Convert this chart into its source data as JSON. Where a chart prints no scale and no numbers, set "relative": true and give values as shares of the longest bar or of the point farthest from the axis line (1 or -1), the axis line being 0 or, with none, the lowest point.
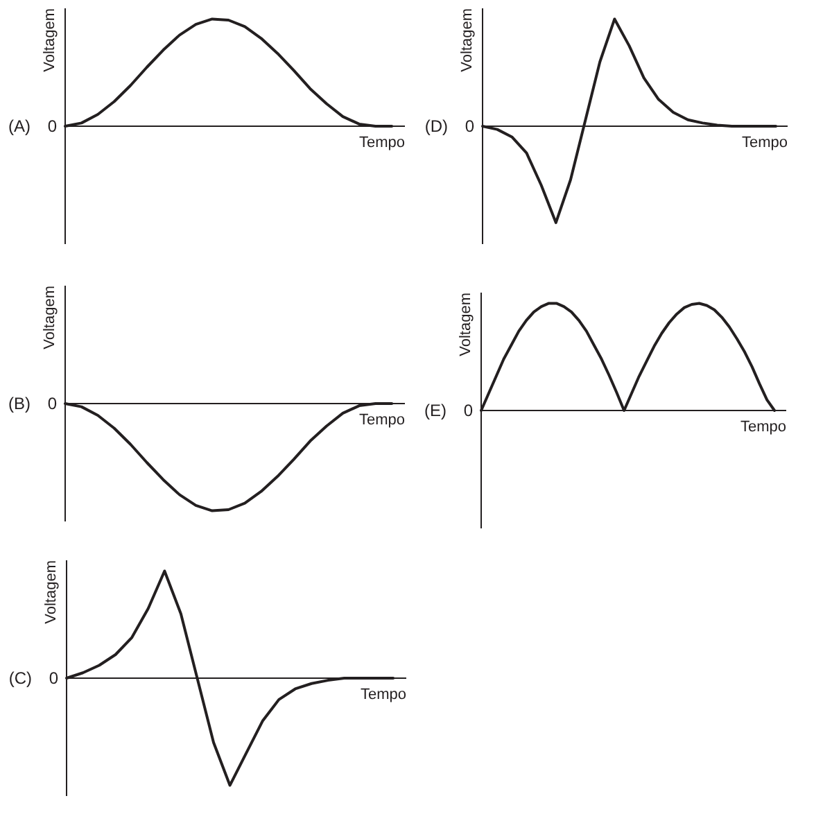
{
  "chart_data": [
    {
      "type": "line",
      "title": "(A)",
      "xlabel": "Tempo",
      "ylabel": "Voltagem",
      "relative": true,
      "color": "#231f20",
      "annotations": [
        "0"
      ],
      "categories": [
        null,
        null,
        null,
        null,
        null,
        null,
        null,
        null,
        null,
        null,
        null,
        null,
        null,
        null,
        null,
        null,
        null,
        null,
        null,
        null,
        null
      ],
      "values": [
        0,
        0.03,
        0.11,
        0.23,
        0.38,
        0.55,
        0.71,
        0.85,
        0.95,
        1,
        0.99,
        0.93,
        0.82,
        0.68,
        0.52,
        0.35,
        0.21,
        0.09,
        0.02,
        0,
        0
      ]
    },
    {
      "type": "line",
      "title": "(B)",
      "xlabel": "Tempo",
      "ylabel": "Voltagem",
      "relative": true,
      "color": "#231f20",
      "annotations": [
        "0"
      ],
      "categories": [
        null,
        null,
        null,
        null,
        null,
        null,
        null,
        null,
        null,
        null,
        null,
        null,
        null,
        null,
        null,
        null,
        null,
        null,
        null,
        null,
        null
      ],
      "values": [
        0,
        -0.03,
        -0.11,
        -0.23,
        -0.38,
        -0.55,
        -0.71,
        -0.85,
        -0.95,
        -1,
        -0.99,
        -0.93,
        -0.82,
        -0.68,
        -0.52,
        -0.35,
        -0.21,
        -0.09,
        -0.02,
        0,
        0
      ]
    },
    {
      "type": "line",
      "xlabel": "Tempo",
      "ylabel": "Voltagem",
      "relative": true,
      "color": "#231f20",
      "annotations": [
        "0"
      ],
      "title": "(C)",
      "categories": [
        null,
        null,
        null,
        null,
        null,
        null,
        null,
        null,
        null,
        null,
        null,
        null,
        null,
        null,
        null,
        null,
        null,
        null,
        null,
        null,
        null
      ],
      "values": [
        0,
        0.05,
        0.12,
        0.22,
        0.38,
        0.65,
        1,
        0.6,
        0,
        -0.6,
        -1,
        -0.7,
        -0.4,
        -0.2,
        -0.1,
        -0.05,
        -0.02,
        0,
        0,
        0,
        0
      ]
    },
    {
      "type": "line",
      "title": "(D)",
      "xlabel": "Tempo",
      "ylabel": "Voltagem",
      "relative": true,
      "color": "#231f20",
      "annotations": [
        "0"
      ],
      "categories": [
        null,
        null,
        null,
        null,
        null,
        null,
        null,
        null,
        null,
        null,
        null,
        null,
        null,
        null,
        null,
        null,
        null,
        null,
        null,
        null,
        null
      ],
      "values": [
        0,
        -0.03,
        -0.1,
        -0.25,
        -0.55,
        -0.9,
        -0.5,
        0.05,
        0.6,
        1,
        0.75,
        0.45,
        0.25,
        0.13,
        0.06,
        0.03,
        0.01,
        0,
        0,
        0,
        0
      ]
    },
    {
      "type": "line",
      "title": "(E)",
      "xlabel": "Tempo",
      "ylabel": "Voltagem",
      "relative": true,
      "color": "#231f20",
      "annotations": [
        "0"
      ],
      "categories": [
        null,
        null,
        null,
        null,
        null,
        null,
        null,
        null,
        null,
        null,
        null,
        null,
        null,
        null,
        null,
        null,
        null,
        null,
        null,
        null,
        null,
        null,
        null,
        null,
        null,
        null,
        null,
        null,
        null,
        null,
        null,
        null,
        null,
        null,
        null,
        null,
        null,
        null,
        null,
        null
      ],
      "values": [
        0,
        0.16,
        0.32,
        0.48,
        0.61,
        0.74,
        0.84,
        0.92,
        0.97,
        1,
        1,
        0.97,
        0.92,
        0.84,
        0.74,
        0.61,
        0.48,
        0.33,
        0.17,
        0,
        0.16,
        0.32,
        0.46,
        0.6,
        0.72,
        0.82,
        0.9,
        0.96,
        0.99,
        1,
        0.98,
        0.94,
        0.87,
        0.78,
        0.67,
        0.55,
        0.41,
        0.25,
        0.1,
        0
      ]
    }
  ]
}
